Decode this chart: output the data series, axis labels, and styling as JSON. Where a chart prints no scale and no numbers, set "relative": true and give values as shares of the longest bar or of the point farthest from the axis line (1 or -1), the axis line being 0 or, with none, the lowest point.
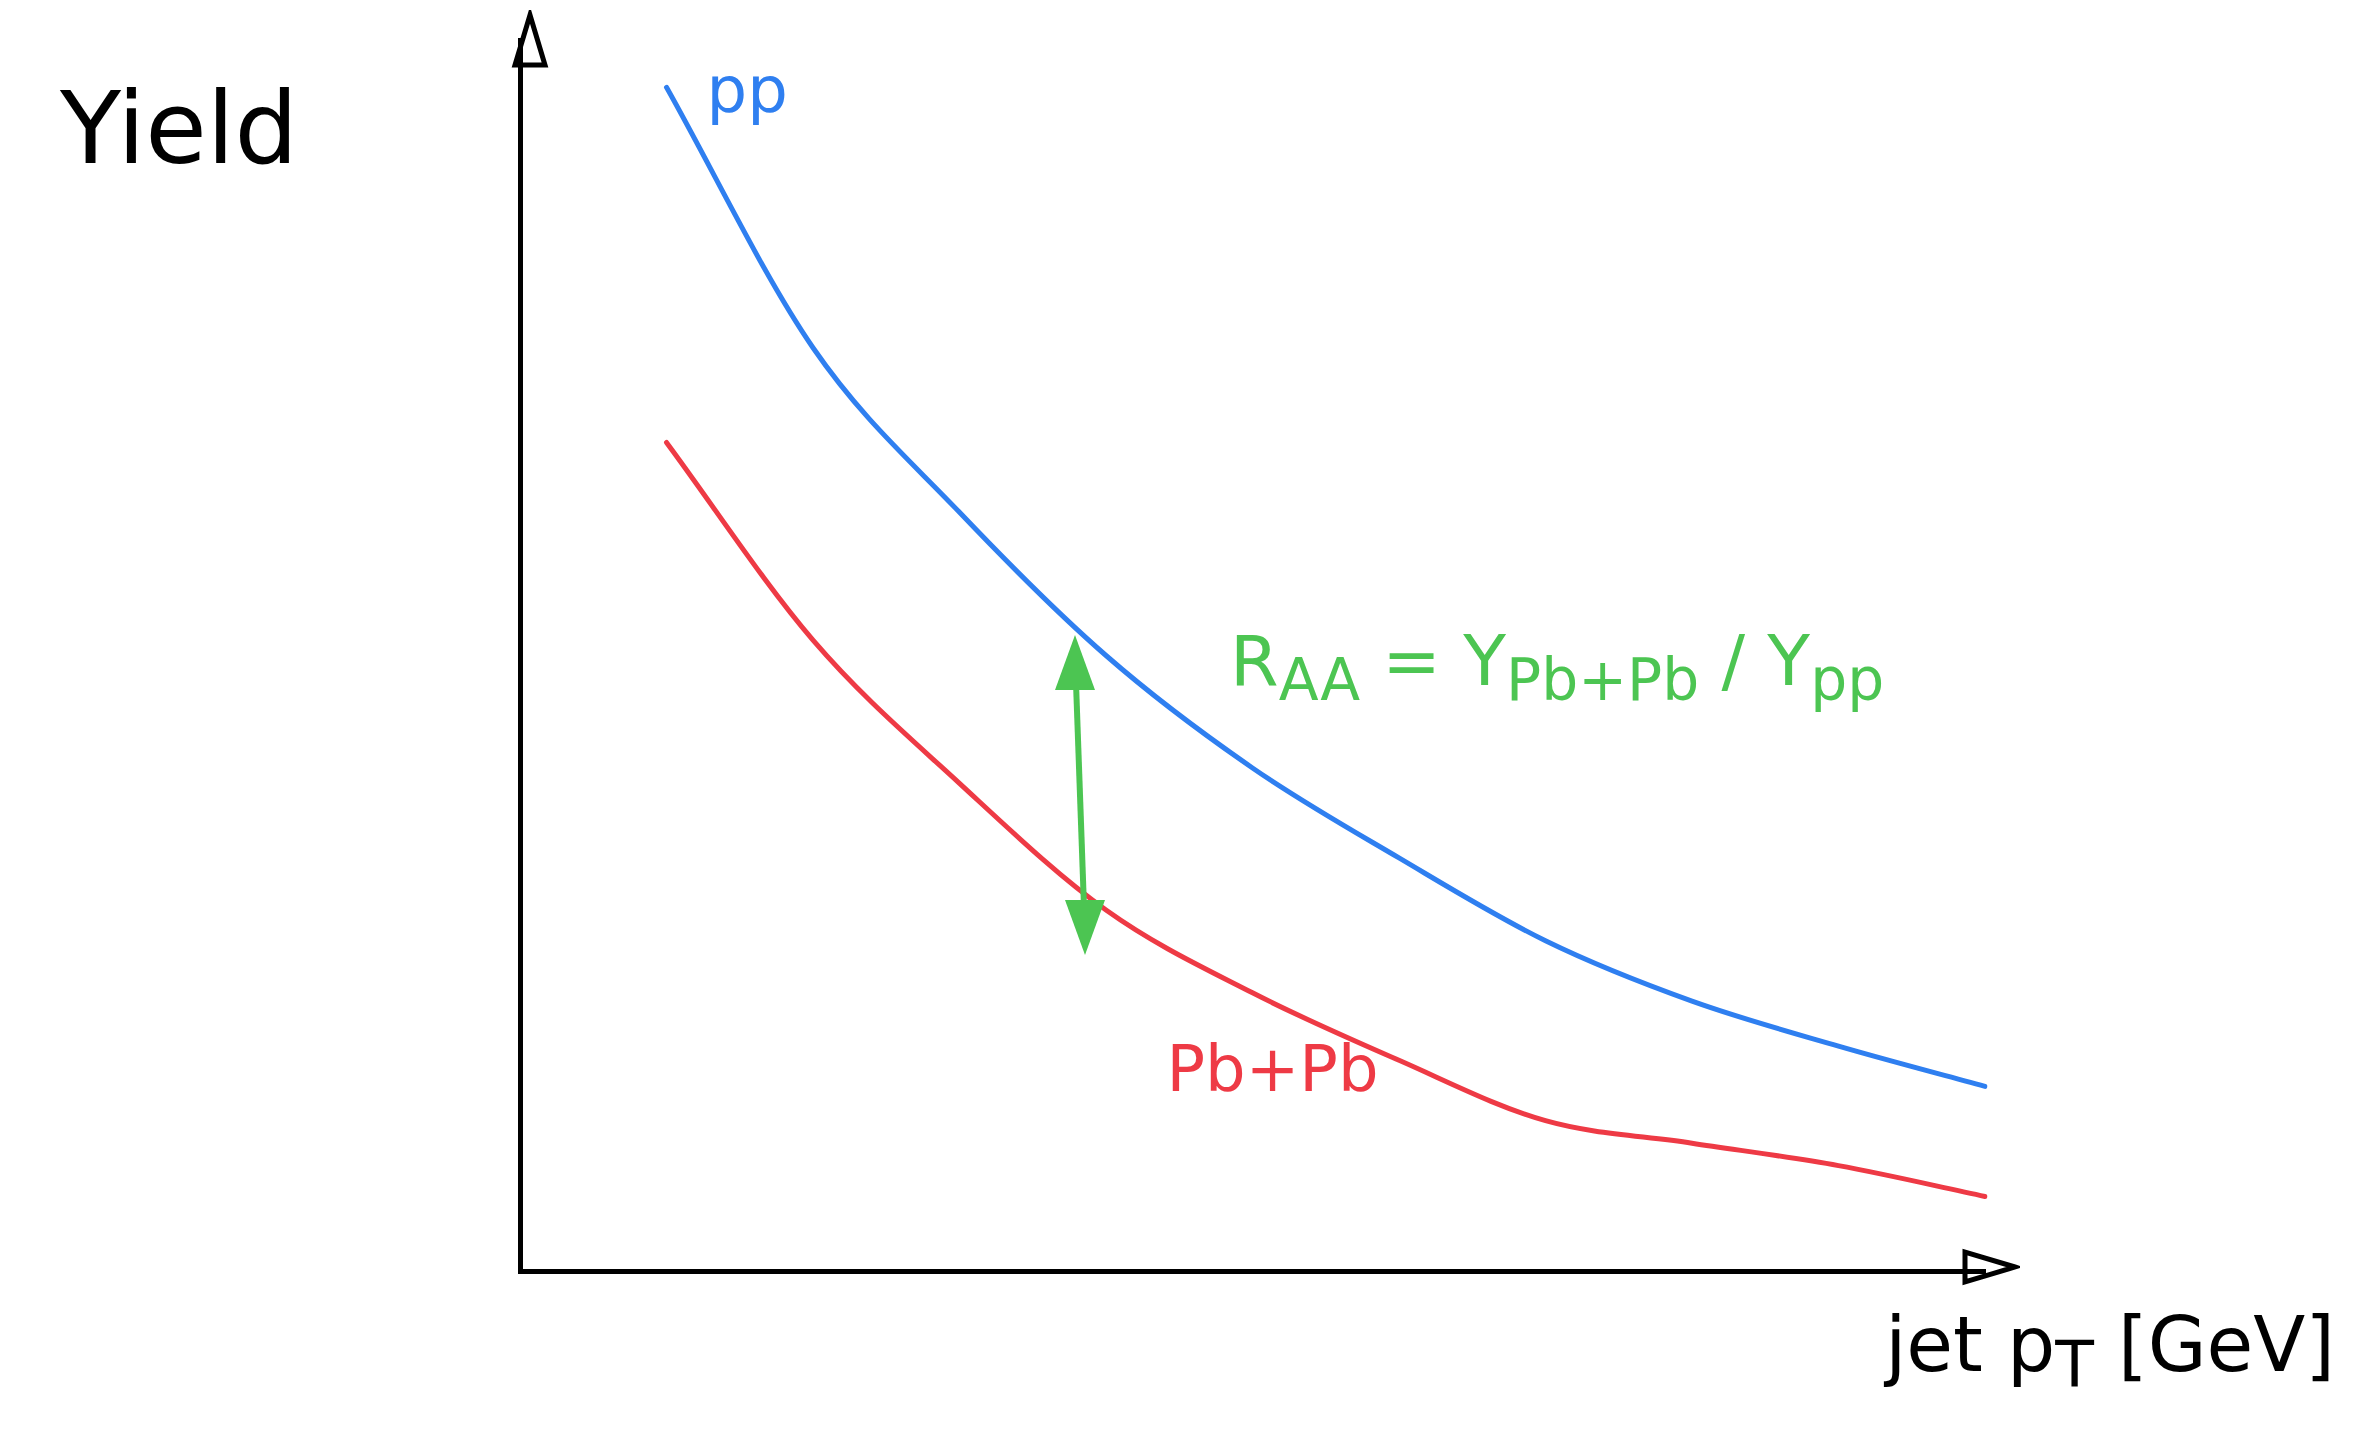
{
  "chart_data": {
    "type": "line",
    "relative": true,
    "xlabel": "jet p$_{T}$ [GeV]",
    "ylabel": "Yield",
    "categories": [
      null,
      null,
      null,
      null,
      null,
      null,
      null,
      null,
      null,
      null,
      null
    ],
    "series": [
      {
        "name": "pp",
        "color": "#2f7ff0",
        "values": [
          null,
          1.0,
          0.78,
          0.641,
          0.52,
          0.425,
          0.349,
          0.279,
          0.228,
          0.19,
          0.156
        ]
      },
      {
        "name": "Pb+Pb",
        "color": "#ee3a45",
        "values": [
          null,
          0.7,
          0.533,
          0.412,
          0.305,
          0.235,
          0.178,
          0.127,
          0.108,
          0.089,
          0.063
        ]
      }
    ],
    "annotations": [
      "R$_{AA}$ = Y$_{Pb+Pb}$ / Y$_{pp}$"
    ],
    "grid": false,
    "legend": false,
    "tick_labels": false,
    "marker": "none",
    "line_style": "solid"
  }
}
